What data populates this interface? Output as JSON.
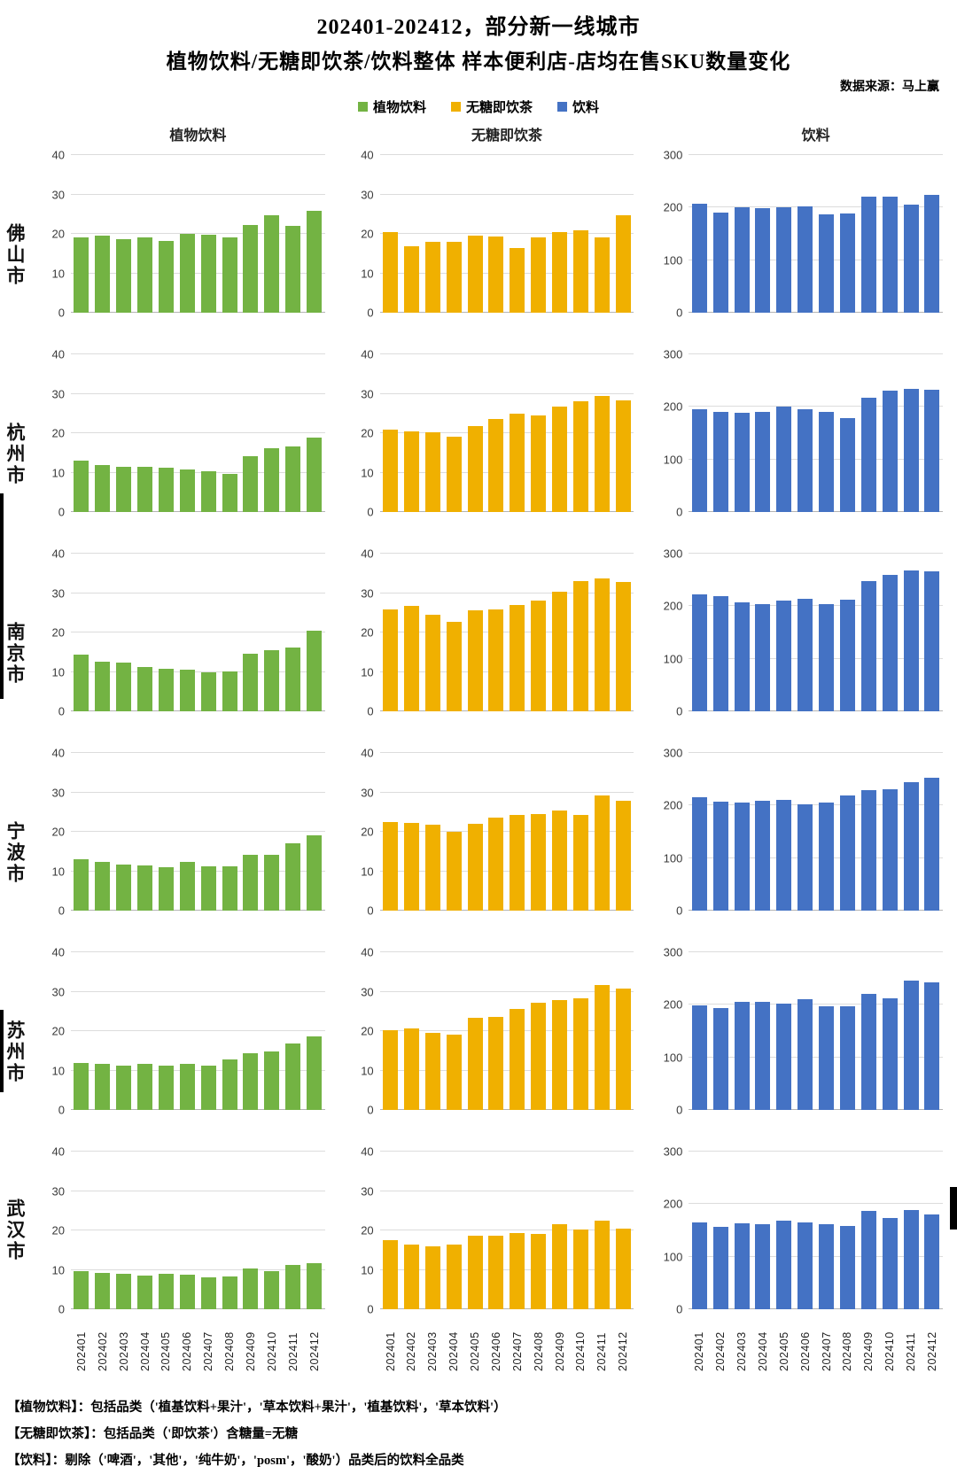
{
  "header": {
    "title_line1": "202401-202412，部分新一线城市",
    "title_line2": "植物饮料/无糖即饮茶/饮料整体 样本便利店-店均在售SKU数量变化",
    "source": "数据来源：马上赢"
  },
  "legend": [
    {
      "label": "植物饮料",
      "color": "#73B343"
    },
    {
      "label": "无糖即饮茶",
      "color": "#F0B000"
    },
    {
      "label": "饮料",
      "color": "#4472C4"
    }
  ],
  "chart_data": {
    "type": "bar",
    "x": [
      "202401",
      "202402",
      "202403",
      "202404",
      "202405",
      "202406",
      "202407",
      "202408",
      "202409",
      "202410",
      "202411",
      "202412"
    ],
    "columns": [
      {
        "title": "植物饮料",
        "color": "#73B343",
        "ylim": [
          0,
          40
        ],
        "yticks": [
          0,
          10,
          20,
          30,
          40
        ],
        "grid": true,
        "legend_position": "top"
      },
      {
        "title": "无糖即饮茶",
        "color": "#F0B000",
        "ylim": [
          0,
          40
        ],
        "yticks": [
          0,
          10,
          20,
          30,
          40
        ],
        "grid": true,
        "legend_position": "top"
      },
      {
        "title": "饮料",
        "color": "#4472C4",
        "ylim": [
          0,
          300
        ],
        "yticks": [
          0,
          100,
          200,
          300
        ],
        "grid": true,
        "legend_position": "top"
      }
    ],
    "rows": [
      {
        "city": "佛山市",
        "series": [
          {
            "name": "植物饮料",
            "values": [
              19.1,
              19.5,
              18.7,
              19.0,
              18.3,
              20.1,
              19.8,
              19.2,
              22.3,
              24.8,
              22.1,
              25.9
            ]
          },
          {
            "name": "无糖即饮茶",
            "values": [
              20.4,
              16.8,
              17.9,
              18.0,
              19.5,
              19.4,
              16.5,
              19.2,
              20.4,
              20.9,
              19.1,
              24.8
            ]
          },
          {
            "name": "饮料",
            "values": [
              207,
              190,
              201,
              199,
              200,
              203,
              187,
              189,
              220,
              221,
              206,
              224
            ]
          }
        ]
      },
      {
        "city": "杭州市",
        "series": [
          {
            "name": "植物饮料",
            "values": [
              13.1,
              12.0,
              11.5,
              11.4,
              11.2,
              10.8,
              10.4,
              9.6,
              14.2,
              16.2,
              16.7,
              18.8
            ]
          },
          {
            "name": "无糖即饮茶",
            "values": [
              20.9,
              20.4,
              20.2,
              19.0,
              21.9,
              23.5,
              25.0,
              24.6,
              26.8,
              28.2,
              29.4,
              28.4
            ]
          },
          {
            "name": "饮料",
            "values": [
              196,
              191,
              189,
              191,
              200,
              196,
              191,
              179,
              218,
              231,
              235,
              233
            ]
          }
        ]
      },
      {
        "city": "南京市",
        "series": [
          {
            "name": "植物饮料",
            "values": [
              14.4,
              12.6,
              12.4,
              11.2,
              10.8,
              10.5,
              9.9,
              10.1,
              14.6,
              15.5,
              16.2,
              20.4
            ]
          },
          {
            "name": "无糖即饮茶",
            "values": [
              25.9,
              26.7,
              24.5,
              22.8,
              25.6,
              25.9,
              27.0,
              28.0,
              30.4,
              33.0,
              33.7,
              32.9
            ]
          },
          {
            "name": "饮料",
            "values": [
              222,
              219,
              208,
              204,
              210,
              214,
              204,
              212,
              248,
              259,
              268,
              267
            ]
          }
        ]
      },
      {
        "city": "宁波市",
        "series": [
          {
            "name": "植物饮料",
            "values": [
              13.0,
              12.3,
              11.7,
              11.5,
              11.1,
              12.3,
              11.2,
              11.3,
              14.2,
              14.2,
              17.0,
              19.0
            ]
          },
          {
            "name": "无糖即饮茶",
            "values": [
              22.5,
              22.2,
              21.9,
              20.0,
              22.1,
              23.7,
              24.2,
              24.6,
              25.4,
              24.2,
              29.2,
              27.8
            ]
          },
          {
            "name": "饮料",
            "values": [
              215,
              207,
              206,
              209,
              210,
              203,
              206,
              219,
              230,
              231,
              245,
              252
            ]
          }
        ]
      },
      {
        "city": "苏州市",
        "series": [
          {
            "name": "植物饮料",
            "values": [
              11.9,
              11.6,
              11.3,
              11.6,
              11.3,
              11.6,
              11.3,
              12.8,
              14.3,
              14.9,
              16.9,
              18.6
            ]
          },
          {
            "name": "无糖即饮茶",
            "values": [
              20.2,
              20.6,
              19.6,
              19.0,
              23.4,
              23.6,
              25.7,
              27.1,
              27.9,
              28.4,
              31.7,
              30.9
            ]
          },
          {
            "name": "饮料",
            "values": [
              199,
              194,
              205,
              206,
              202,
              210,
              197,
              198,
              220,
              213,
              246,
              243
            ]
          }
        ]
      },
      {
        "city": "武汉市",
        "series": [
          {
            "name": "植物饮料",
            "values": [
              9.7,
              9.3,
              8.9,
              8.5,
              8.9,
              8.8,
              8.1,
              8.3,
              10.4,
              9.7,
              11.3,
              11.8
            ]
          },
          {
            "name": "无糖即饮茶",
            "values": [
              17.5,
              16.5,
              15.9,
              16.5,
              18.7,
              18.6,
              19.4,
              19.2,
              21.5,
              20.3,
              22.4,
              20.4
            ]
          },
          {
            "name": "饮料",
            "values": [
              165,
              157,
              163,
              161,
              168,
              166,
              161,
              158,
              187,
              173,
              189,
              180
            ]
          }
        ]
      }
    ]
  },
  "footnotes": [
    "【植物饮料】：包括品类（'植基饮料+果汁'，'草本饮料+果汁'，'植基饮料'，'草本饮料'）",
    "【无糖即饮茶】：包括品类（'即饮茶'）含糖量=无糖",
    "【饮料】：剔除（'啤酒'，'其他'，'纯牛奶'，'posm'，'酸奶'）品类后的饮料全品类"
  ]
}
